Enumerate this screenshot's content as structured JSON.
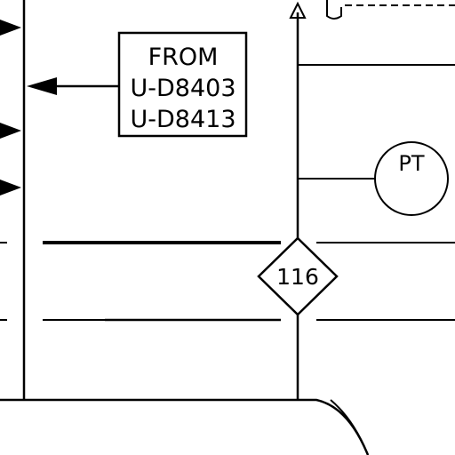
{
  "drawing": {
    "note_box": {
      "line1": "FROM",
      "line2": "U-D8403",
      "line3": "U-D8413"
    },
    "instrument": {
      "tag": "PT"
    },
    "diamond_marker": {
      "number": "116"
    },
    "colors": {
      "line": "#000000",
      "background": "#ffffff"
    }
  }
}
